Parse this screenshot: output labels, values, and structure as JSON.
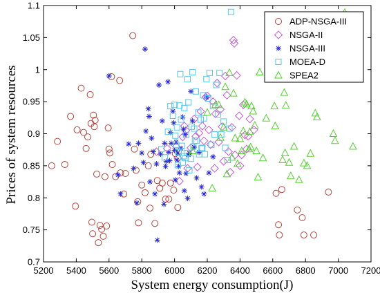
{
  "chart_data": {
    "type": "scatter",
    "title": "",
    "xlabel": "System energy consumption(J)",
    "ylabel": "Prices of system resources",
    "xlim": [
      5200,
      7200
    ],
    "ylim": [
      0.7,
      1.1
    ],
    "grid": false,
    "legend_position": "top-right",
    "xticks": [
      "5200",
      "5400",
      "5600",
      "5800",
      "6000",
      "6200",
      "6400",
      "6600",
      "6800",
      "7000",
      "7200"
    ],
    "yticks": [
      "0.7",
      "0.75",
      "0.8",
      "0.85",
      "0.9",
      "0.95",
      "1",
      "1.05",
      "1.1"
    ],
    "series": [
      {
        "name": "ADP-NSGA-III",
        "marker": "circle",
        "color": "#b5443a",
        "points": [
          [
            5250,
            0.85
          ],
          [
            5285,
            0.888
          ],
          [
            5330,
            0.852
          ],
          [
            5365,
            0.927
          ],
          [
            5395,
            0.787
          ],
          [
            5405,
            0.906
          ],
          [
            5430,
            0.971
          ],
          [
            5445,
            0.902
          ],
          [
            5460,
            0.877
          ],
          [
            5470,
            0.895
          ],
          [
            5485,
            0.961
          ],
          [
            5490,
            0.916
          ],
          [
            5495,
            0.762
          ],
          [
            5500,
            0.744
          ],
          [
            5505,
            0.929
          ],
          [
            5510,
            0.911
          ],
          [
            5515,
            0.921
          ],
          [
            5525,
            0.837
          ],
          [
            5535,
            0.73
          ],
          [
            5545,
            0.757
          ],
          [
            5555,
            0.751
          ],
          [
            5565,
            0.74
          ],
          [
            5575,
            0.833
          ],
          [
            5585,
            0.756
          ],
          [
            5595,
            0.909
          ],
          [
            5600,
            0.876
          ],
          [
            5605,
            0.87
          ],
          [
            5615,
            0.989
          ],
          [
            5620,
            0.852
          ],
          [
            5640,
            0.833
          ],
          [
            5665,
            0.983
          ],
          [
            5670,
            0.839
          ],
          [
            5690,
            0.806
          ],
          [
            5700,
            0.838
          ],
          [
            5745,
            1.053
          ],
          [
            5755,
            0.876
          ],
          [
            5765,
            0.843
          ],
          [
            5775,
            0.794
          ],
          [
            5780,
            0.761
          ],
          [
            5800,
            0.82
          ],
          [
            5820,
            0.808
          ],
          [
            5840,
            0.85
          ],
          [
            5850,
            0.784
          ],
          [
            5855,
            0.868
          ],
          [
            5880,
            0.76
          ],
          [
            5895,
            0.827
          ],
          [
            5910,
            0.815
          ],
          [
            5925,
            0.823
          ],
          [
            5945,
            0.798
          ],
          [
            5965,
            0.798
          ],
          [
            5975,
            0.823
          ],
          [
            5995,
            0.812
          ],
          [
            6005,
            0.869
          ],
          [
            6020,
            0.785
          ],
          [
            6620,
            0.807
          ],
          [
            6635,
            0.758
          ],
          [
            6640,
            0.742
          ],
          [
            6655,
            0.813
          ],
          [
            6750,
            0.781
          ],
          [
            6780,
            0.769
          ],
          [
            6790,
            0.742
          ],
          [
            6850,
            0.742
          ],
          [
            6940,
            0.809
          ]
        ]
      },
      {
        "name": "NSGA-II",
        "marker": "diamond",
        "color": "#c45ad1",
        "points": [
          [
            5890,
            0.872
          ],
          [
            5955,
            0.877
          ],
          [
            6010,
            0.88
          ],
          [
            6020,
            0.862
          ],
          [
            6030,
            0.826
          ],
          [
            6050,
            0.895
          ],
          [
            6060,
            0.912
          ],
          [
            6070,
            0.905
          ],
          [
            6080,
            0.846
          ],
          [
            6100,
            0.878
          ],
          [
            6120,
            0.923
          ],
          [
            6130,
            0.896
          ],
          [
            6140,
            0.848
          ],
          [
            6150,
            0.901
          ],
          [
            6160,
            0.935
          ],
          [
            6170,
            0.912
          ],
          [
            6180,
            0.889
          ],
          [
            6190,
            0.957
          ],
          [
            6200,
            0.959
          ],
          [
            6210,
            0.906
          ],
          [
            6220,
            0.883
          ],
          [
            6235,
            0.95
          ],
          [
            6245,
            0.846
          ],
          [
            6250,
            0.931
          ],
          [
            6260,
            0.979
          ],
          [
            6270,
            0.887
          ],
          [
            6280,
            0.938
          ],
          [
            6290,
            0.911
          ],
          [
            6300,
            0.857
          ],
          [
            6310,
            0.99
          ],
          [
            6320,
            0.96
          ],
          [
            6330,
            0.872
          ],
          [
            6340,
            0.84
          ],
          [
            6350,
            0.91
          ],
          [
            6360,
            1.046
          ],
          [
            6365,
            1.041
          ],
          [
            6370,
            0.867
          ],
          [
            6380,
            0.991
          ],
          [
            6395,
            0.928
          ],
          [
            6400,
            0.85
          ],
          [
            6410,
            0.867
          ],
          [
            6420,
            0.945
          ],
          [
            6430,
            0.898
          ],
          [
            6440,
            0.876
          ],
          [
            6450,
            0.896
          ],
          [
            6460,
            0.923
          ],
          [
            6485,
            0.906
          ]
        ]
      },
      {
        "name": "NSGA-III",
        "marker": "asterisk",
        "color": "#2a2ad6",
        "points": [
          [
            5600,
            0.99
          ],
          [
            5655,
            0.836
          ],
          [
            5670,
            0.806
          ],
          [
            5720,
            0.884
          ],
          [
            5750,
            0.846
          ],
          [
            5770,
            0.792
          ],
          [
            5780,
            0.885
          ],
          [
            5800,
            0.87
          ],
          [
            5810,
            0.855
          ],
          [
            5820,
            1.032
          ],
          [
            5825,
            0.904
          ],
          [
            5840,
            0.939
          ],
          [
            5845,
            0.927
          ],
          [
            5850,
            0.825
          ],
          [
            5860,
            0.893
          ],
          [
            5870,
            0.872
          ],
          [
            5880,
            0.806
          ],
          [
            5890,
            0.853
          ],
          [
            5895,
            0.734
          ],
          [
            5905,
            0.976
          ],
          [
            5915,
            0.868
          ],
          [
            5925,
            0.92
          ],
          [
            5935,
            0.79
          ],
          [
            5940,
            0.885
          ],
          [
            5945,
            0.849
          ],
          [
            5950,
            0.857
          ],
          [
            5960,
            0.981
          ],
          [
            5965,
            0.871
          ],
          [
            5970,
            0.858
          ],
          [
            5975,
            0.902
          ],
          [
            5980,
            0.885
          ],
          [
            5990,
            0.935
          ],
          [
            5995,
            0.917
          ],
          [
            6000,
            0.874
          ],
          [
            6005,
            0.828
          ],
          [
            6010,
            0.887
          ],
          [
            6015,
            0.859
          ],
          [
            6020,
            0.87
          ],
          [
            6025,
            0.849
          ],
          [
            6030,
            0.839
          ],
          [
            6040,
            0.877
          ],
          [
            6050,
            0.926
          ],
          [
            6055,
            0.907
          ],
          [
            6060,
            0.811
          ],
          [
            6065,
            0.899
          ],
          [
            6070,
            0.838
          ],
          [
            6080,
            0.799
          ],
          [
            6085,
            0.867
          ],
          [
            6090,
            0.87
          ],
          [
            6100,
            0.966
          ],
          [
            6110,
            0.92
          ],
          [
            6120,
            0.879
          ],
          [
            6135,
            0.831
          ],
          [
            6150,
            0.871
          ],
          [
            6165,
            0.817
          ],
          [
            6180,
            0.806
          ],
          [
            6195,
            0.957
          ],
          [
            6210,
            0.839
          ],
          [
            6235,
            0.864
          ]
        ]
      },
      {
        "name": "MOEA-D",
        "marker": "square",
        "color": "#4fc6ee",
        "points": [
          [
            5920,
            0.876
          ],
          [
            5940,
            0.863
          ],
          [
            5960,
            0.903
          ],
          [
            5975,
            0.943
          ],
          [
            5990,
            0.928
          ],
          [
            6000,
            0.945
          ],
          [
            6005,
            0.897
          ],
          [
            6010,
            0.883
          ],
          [
            6015,
            0.91
          ],
          [
            6020,
            0.851
          ],
          [
            6025,
            0.871
          ],
          [
            6030,
            0.944
          ],
          [
            6035,
            0.993
          ],
          [
            6040,
            0.922
          ],
          [
            6045,
            0.881
          ],
          [
            6050,
            0.855
          ],
          [
            6055,
            0.865
          ],
          [
            6060,
            0.94
          ],
          [
            6065,
            0.862
          ],
          [
            6070,
            0.898
          ],
          [
            6075,
            0.87
          ],
          [
            6080,
            0.985
          ],
          [
            6085,
            0.949
          ],
          [
            6090,
            0.843
          ],
          [
            6100,
            0.861
          ],
          [
            6105,
            0.911
          ],
          [
            6110,
            0.996
          ],
          [
            6115,
            0.88
          ],
          [
            6120,
            0.908
          ],
          [
            6125,
            0.889
          ],
          [
            6130,
            0.966
          ],
          [
            6135,
            0.889
          ],
          [
            6145,
            0.933
          ],
          [
            6150,
            0.868
          ],
          [
            6160,
            0.922
          ],
          [
            6165,
            0.877
          ],
          [
            6170,
            0.878
          ],
          [
            6175,
            0.96
          ],
          [
            6180,
            0.924
          ],
          [
            6185,
            0.868
          ],
          [
            6195,
            0.985
          ],
          [
            6205,
            0.955
          ],
          [
            6215,
            0.995
          ],
          [
            6225,
            0.883
          ],
          [
            6235,
            0.943
          ],
          [
            6245,
            0.899
          ],
          [
            6255,
            0.976
          ],
          [
            6265,
            0.93
          ],
          [
            6275,
            0.995
          ],
          [
            6285,
            0.899
          ],
          [
            6300,
            0.919
          ],
          [
            6310,
            0.878
          ],
          [
            6325,
            0.859
          ],
          [
            6335,
            0.908
          ],
          [
            6345,
            1.09
          ]
        ]
      },
      {
        "name": "SPEA2",
        "marker": "triangle",
        "color": "#52d12e",
        "points": [
          [
            6110,
            0.873
          ],
          [
            6200,
            0.933
          ],
          [
            6230,
            0.815
          ],
          [
            6250,
            0.945
          ],
          [
            6270,
            0.945
          ],
          [
            6280,
            0.894
          ],
          [
            6300,
            0.91
          ],
          [
            6310,
            0.973
          ],
          [
            6320,
            0.837
          ],
          [
            6335,
            0.995
          ],
          [
            6350,
            0.863
          ],
          [
            6360,
            0.963
          ],
          [
            6370,
            0.893
          ],
          [
            6385,
            0.853
          ],
          [
            6400,
            0.892
          ],
          [
            6410,
            0.873
          ],
          [
            6420,
            0.904
          ],
          [
            6430,
            0.949
          ],
          [
            6440,
            0.946
          ],
          [
            6455,
            0.876
          ],
          [
            6460,
            0.903
          ],
          [
            6465,
            0.879
          ],
          [
            6470,
            0.943
          ],
          [
            6480,
            0.935
          ],
          [
            6490,
            0.913
          ],
          [
            6500,
            0.873
          ],
          [
            6510,
            0.832
          ],
          [
            6520,
            0.996
          ],
          [
            6540,
            0.862
          ],
          [
            6560,
            0.924
          ],
          [
            6610,
            0.943
          ],
          [
            6615,
            0.912
          ],
          [
            6660,
            0.859
          ],
          [
            6670,
            0.964
          ],
          [
            6675,
            0.87
          ],
          [
            6680,
            0.944
          ],
          [
            6700,
            0.855
          ],
          [
            6710,
            0.834
          ],
          [
            6730,
            0.88
          ],
          [
            6760,
            0.828
          ],
          [
            6790,
            0.854
          ],
          [
            6810,
            0.85
          ],
          [
            6830,
            0.869
          ],
          [
            6860,
            0.932
          ],
          [
            6870,
            0.926
          ],
          [
            6970,
            0.9
          ],
          [
            6980,
            0.889
          ],
          [
            7040,
            1.089
          ],
          [
            7090,
            0.88
          ]
        ]
      }
    ]
  }
}
